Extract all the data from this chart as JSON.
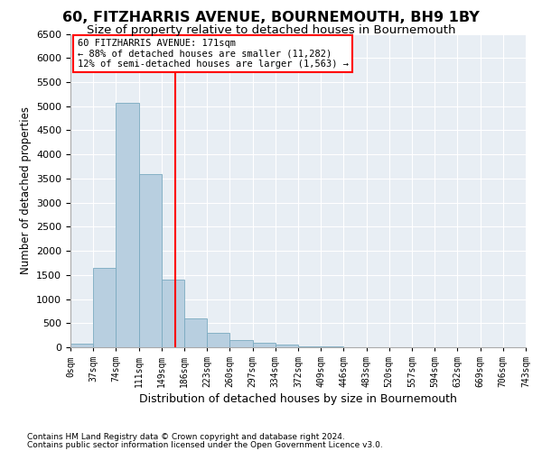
{
  "title": "60, FITZHARRIS AVENUE, BOURNEMOUTH, BH9 1BY",
  "subtitle": "Size of property relative to detached houses in Bournemouth",
  "xlabel": "Distribution of detached houses by size in Bournemouth",
  "ylabel": "Number of detached properties",
  "bar_values": [
    75,
    1650,
    5075,
    3600,
    1400,
    600,
    300,
    150,
    100,
    50,
    25,
    10,
    5,
    2,
    0,
    0,
    0,
    0,
    0,
    0
  ],
  "x_edges": [
    0,
    37,
    74,
    111,
    149,
    186,
    223,
    260,
    297,
    334,
    372,
    409,
    446,
    483,
    520,
    557,
    594,
    632,
    669,
    706,
    743
  ],
  "x_labels": [
    "0sqm",
    "37sqm",
    "74sqm",
    "111sqm",
    "149sqm",
    "186sqm",
    "223sqm",
    "260sqm",
    "297sqm",
    "334sqm",
    "372sqm",
    "409sqm",
    "446sqm",
    "483sqm",
    "520sqm",
    "557sqm",
    "594sqm",
    "632sqm",
    "669sqm",
    "706sqm",
    "743sqm"
  ],
  "bar_color": "#b8cfe0",
  "bar_edge_color": "#7aaac0",
  "property_sqm": 171,
  "property_line_color": "red",
  "annotation_line1": "60 FITZHARRIS AVENUE: 171sqm",
  "annotation_line2": "← 88% of detached houses are smaller (11,282)",
  "annotation_line3": "12% of semi-detached houses are larger (1,563) →",
  "ylim_max": 6500,
  "yticks": [
    0,
    500,
    1000,
    1500,
    2000,
    2500,
    3000,
    3500,
    4000,
    4500,
    5000,
    5500,
    6000,
    6500
  ],
  "plot_bg_color": "#e8eef4",
  "grid_color": "#d0dae6",
  "footer_line1": "Contains HM Land Registry data © Crown copyright and database right 2024.",
  "footer_line2": "Contains public sector information licensed under the Open Government Licence v3.0."
}
